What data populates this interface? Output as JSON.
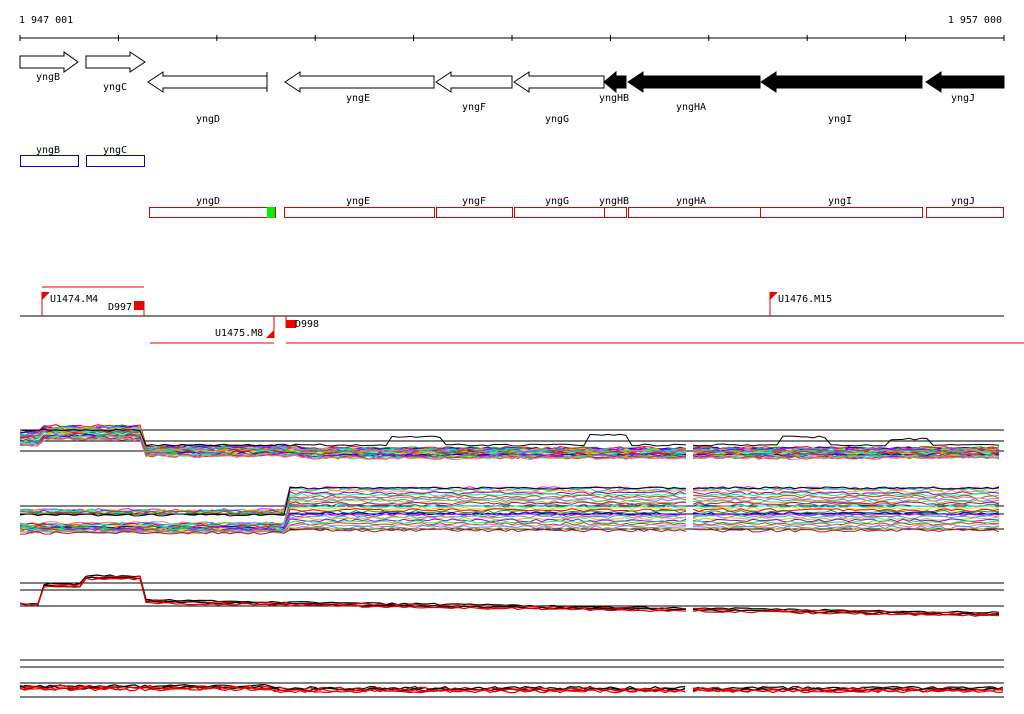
{
  "ruler": {
    "start_label": "1 947 001",
    "end_label": "1 957 000"
  },
  "genes_forward": [
    "yngB",
    "yngC"
  ],
  "genes_reverse_open": [
    "yngD",
    "yngE",
    "yngF",
    "yngG"
  ],
  "genes_reverse_filled": [
    "yngHB",
    "yngHA",
    "yngI",
    "yngJ"
  ],
  "annotation_boxes_blue": [
    "yngB",
    "yngC"
  ],
  "annotation_boxes_red": [
    "yngD",
    "yngE",
    "yngF",
    "yngG",
    "yngHB",
    "yngHA",
    "yngI",
    "yngJ"
  ],
  "features": {
    "u1474": "U1474.M4",
    "d997": "D997",
    "u1475": "U1475.M8",
    "d998": "D998",
    "u1476": "U1476.M15"
  },
  "colors": {
    "open_gene": "#ffffff",
    "filled_gene": "#000000",
    "box_blue": "#0000cc",
    "box_red": "#dd0000",
    "marker_green": "#00ee00",
    "feature_red": "#ee0000"
  },
  "tracks": [
    {
      "name": "expression-profiles-1",
      "style": "multicolor"
    },
    {
      "name": "expression-profiles-2",
      "style": "multicolor"
    },
    {
      "name": "expression-profiles-3",
      "style": "black-red"
    },
    {
      "name": "expression-profiles-4",
      "style": "black-red"
    }
  ]
}
